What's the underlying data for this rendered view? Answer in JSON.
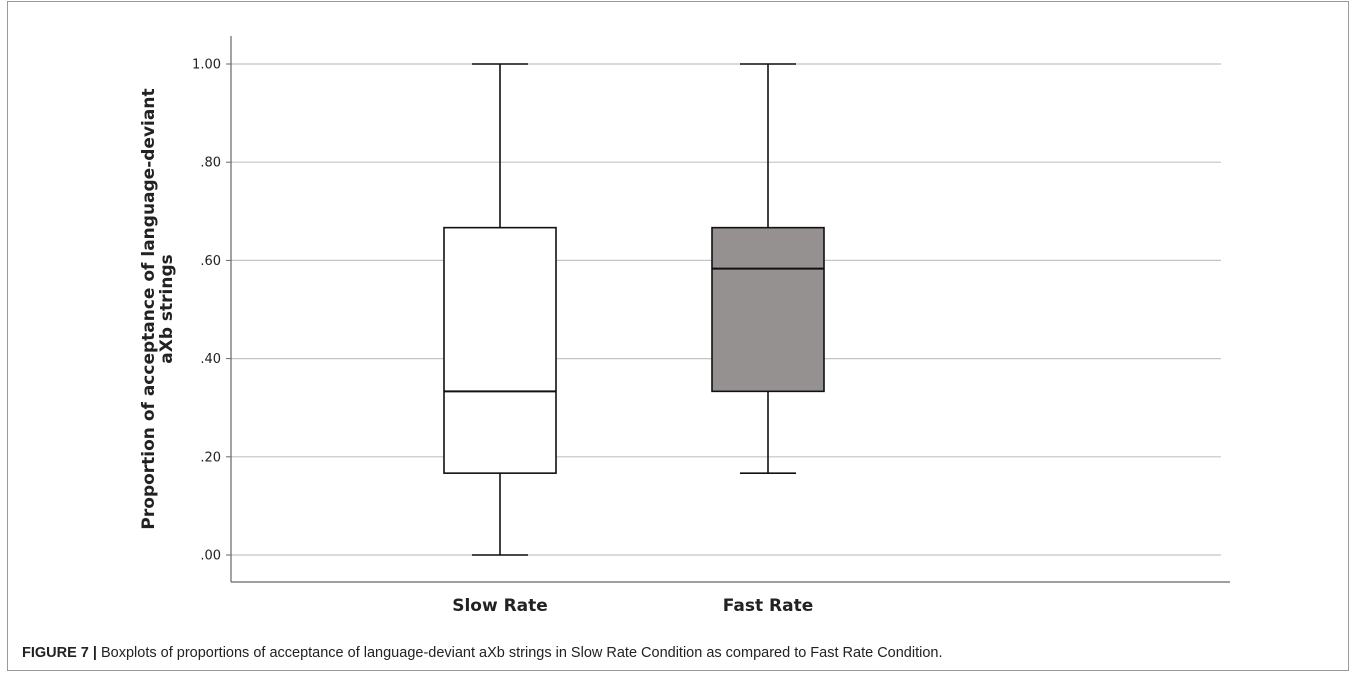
{
  "caption": {
    "label": "FIGURE 7 |",
    "text": "Boxplots of proportions of acceptance of language-deviant aXb strings in Slow Rate Condition as compared to Fast Rate Condition."
  },
  "chart_data": {
    "type": "boxplot",
    "ylabel_lines": [
      "Proportion of acceptance of language-deviant",
      "aXb strings"
    ],
    "xlabel": "",
    "ylim": [
      0,
      1
    ],
    "yticks": [
      0,
      0.2,
      0.4,
      0.6,
      0.8,
      1.0
    ],
    "ytick_labels": [
      ".00",
      ".20",
      ".40",
      ".60",
      ".80",
      "1.00"
    ],
    "grid": true,
    "categories": [
      "Slow Rate",
      "Fast Rate"
    ],
    "boxes": [
      {
        "category": "Slow Rate",
        "min": 0.0,
        "q1": 0.1667,
        "median": 0.3333,
        "q3": 0.6667,
        "max": 1.0,
        "fill": "#ffffff"
      },
      {
        "category": "Fast Rate",
        "min": 0.1667,
        "q1": 0.3333,
        "median": 0.5833,
        "q3": 0.6667,
        "max": 1.0,
        "fill": "#959190"
      }
    ]
  }
}
